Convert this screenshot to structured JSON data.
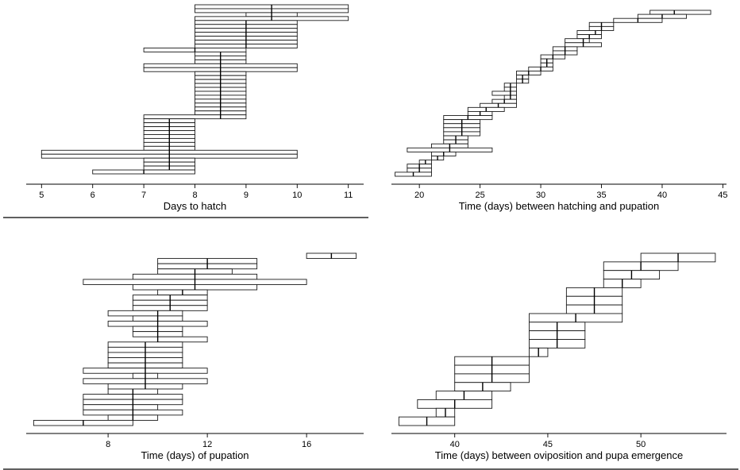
{
  "chart_data": [
    {
      "type": "bar",
      "xlabel": "Days to hatch",
      "xlim": [
        4.7,
        11.3
      ],
      "xticks": [
        5,
        6,
        7,
        8,
        9,
        10,
        11
      ],
      "intervals": [
        {
          "lo": 8,
          "hi": 11,
          "med": 9.5
        },
        {
          "lo": 8,
          "hi": 11,
          "med": 9.5
        },
        {
          "lo": 9,
          "hi": 10,
          "med": 9.5
        },
        {
          "lo": 8,
          "hi": 11,
          "med": 9.5
        },
        {
          "lo": 8,
          "hi": 10,
          "med": 9
        },
        {
          "lo": 8,
          "hi": 10,
          "med": 9
        },
        {
          "lo": 8,
          "hi": 10,
          "med": 9
        },
        {
          "lo": 8,
          "hi": 10,
          "med": 9
        },
        {
          "lo": 8,
          "hi": 10,
          "med": 9
        },
        {
          "lo": 8,
          "hi": 10,
          "med": 9
        },
        {
          "lo": 8,
          "hi": 10,
          "med": 9
        },
        {
          "lo": 7,
          "hi": 9,
          "med": 8
        },
        {
          "lo": 8,
          "hi": 9,
          "med": 8.5
        },
        {
          "lo": 8,
          "hi": 9,
          "med": 8.5
        },
        {
          "lo": 8,
          "hi": 9,
          "med": 8.5
        },
        {
          "lo": 7,
          "hi": 10,
          "med": 8.5
        },
        {
          "lo": 7,
          "hi": 10,
          "med": 8.5
        },
        {
          "lo": 8,
          "hi": 9,
          "med": 8.5
        },
        {
          "lo": 8,
          "hi": 9,
          "med": 8.5
        },
        {
          "lo": 8,
          "hi": 9,
          "med": 8.5
        },
        {
          "lo": 8,
          "hi": 9,
          "med": 8.5
        },
        {
          "lo": 8,
          "hi": 9,
          "med": 8.5
        },
        {
          "lo": 8,
          "hi": 9,
          "med": 8.5
        },
        {
          "lo": 8,
          "hi": 9,
          "med": 8.5
        },
        {
          "lo": 8,
          "hi": 9,
          "med": 8.5
        },
        {
          "lo": 8,
          "hi": 9,
          "med": 8.5
        },
        {
          "lo": 8,
          "hi": 9,
          "med": 8.5
        },
        {
          "lo": 8,
          "hi": 9,
          "med": 8.5
        },
        {
          "lo": 7,
          "hi": 9,
          "med": 8.5
        },
        {
          "lo": 7,
          "hi": 8,
          "med": 7.5
        },
        {
          "lo": 7,
          "hi": 8,
          "med": 7.5
        },
        {
          "lo": 7,
          "hi": 8,
          "med": 7.5
        },
        {
          "lo": 7,
          "hi": 8,
          "med": 7.5
        },
        {
          "lo": 7,
          "hi": 8,
          "med": 7.5
        },
        {
          "lo": 7,
          "hi": 8,
          "med": 7.5
        },
        {
          "lo": 7,
          "hi": 8,
          "med": 7.5
        },
        {
          "lo": 7,
          "hi": 8,
          "med": 7.5
        },
        {
          "lo": 5,
          "hi": 10,
          "med": 7.5
        },
        {
          "lo": 5,
          "hi": 10,
          "med": 7.5
        },
        {
          "lo": 7,
          "hi": 8,
          "med": 7.5
        },
        {
          "lo": 7,
          "hi": 8,
          "med": 7.5
        },
        {
          "lo": 7,
          "hi": 8,
          "med": 7.5
        },
        {
          "lo": 6,
          "hi": 8,
          "med": 7
        }
      ]
    },
    {
      "type": "bar",
      "xlabel": "Time (days) between hatching and pupation",
      "xlim": [
        17.7,
        45.3
      ],
      "xticks": [
        20,
        25,
        30,
        35,
        40,
        45
      ],
      "intervals": [
        {
          "lo": 39,
          "hi": 44,
          "med": 41
        },
        {
          "lo": 38,
          "hi": 42,
          "med": 40
        },
        {
          "lo": 36,
          "hi": 40,
          "med": 38
        },
        {
          "lo": 34,
          "hi": 36,
          "med": 35
        },
        {
          "lo": 34,
          "hi": 36,
          "med": 35
        },
        {
          "lo": 33,
          "hi": 35,
          "med": 34.5
        },
        {
          "lo": 33,
          "hi": 35,
          "med": 34
        },
        {
          "lo": 32,
          "hi": 34,
          "med": 33.5
        },
        {
          "lo": 32,
          "hi": 35,
          "med": 33.5
        },
        {
          "lo": 31,
          "hi": 33,
          "med": 32
        },
        {
          "lo": 31,
          "hi": 33,
          "med": 32
        },
        {
          "lo": 30,
          "hi": 32,
          "med": 31
        },
        {
          "lo": 30,
          "hi": 31,
          "med": 30.5
        },
        {
          "lo": 30,
          "hi": 31,
          "med": 30.5
        },
        {
          "lo": 29,
          "hi": 31,
          "med": 30
        },
        {
          "lo": 28,
          "hi": 30,
          "med": 29
        },
        {
          "lo": 28,
          "hi": 29,
          "med": 28.5
        },
        {
          "lo": 28,
          "hi": 29,
          "med": 28.5
        },
        {
          "lo": 27,
          "hi": 28,
          "med": 27.5
        },
        {
          "lo": 27,
          "hi": 28,
          "med": 27.5
        },
        {
          "lo": 26,
          "hi": 28,
          "med": 27.5
        },
        {
          "lo": 27,
          "hi": 28,
          "med": 27.5
        },
        {
          "lo": 26,
          "hi": 28,
          "med": 27
        },
        {
          "lo": 25,
          "hi": 28,
          "med": 26.5
        },
        {
          "lo": 24,
          "hi": 27,
          "med": 25.5
        },
        {
          "lo": 24,
          "hi": 26,
          "med": 25
        },
        {
          "lo": 22,
          "hi": 26,
          "med": 24
        },
        {
          "lo": 22,
          "hi": 25,
          "med": 23.5
        },
        {
          "lo": 22,
          "hi": 25,
          "med": 23.5
        },
        {
          "lo": 22,
          "hi": 25,
          "med": 23.5
        },
        {
          "lo": 22,
          "hi": 25,
          "med": 23.5
        },
        {
          "lo": 22,
          "hi": 24,
          "med": 23
        },
        {
          "lo": 22,
          "hi": 24,
          "med": 23
        },
        {
          "lo": 21,
          "hi": 24,
          "med": 22.5
        },
        {
          "lo": 19,
          "hi": 26,
          "med": 22.5
        },
        {
          "lo": 21,
          "hi": 23,
          "med": 22
        },
        {
          "lo": 21,
          "hi": 22,
          "med": 21.5
        },
        {
          "lo": 20,
          "hi": 21,
          "med": 20.5
        },
        {
          "lo": 19,
          "hi": 21,
          "med": 20
        },
        {
          "lo": 19,
          "hi": 21,
          "med": 20
        },
        {
          "lo": 18,
          "hi": 21,
          "med": 19.5
        }
      ]
    },
    {
      "type": "bar",
      "xlabel": "Time (days) of pupation",
      "xlim": [
        4.7,
        18.3
      ],
      "xticks": [
        8,
        12,
        16
      ],
      "intervals": [
        {
          "lo": 16,
          "hi": 18,
          "med": 17
        },
        {
          "lo": 10,
          "hi": 14,
          "med": 12
        },
        {
          "lo": 10,
          "hi": 14,
          "med": 12
        },
        {
          "lo": 10,
          "hi": 13,
          "med": 11.5
        },
        {
          "lo": 9,
          "hi": 14,
          "med": 11.5
        },
        {
          "lo": 7,
          "hi": 16,
          "med": 11.5
        },
        {
          "lo": 9,
          "hi": 14,
          "med": 11.5
        },
        {
          "lo": 10,
          "hi": 12,
          "med": 11
        },
        {
          "lo": 9,
          "hi": 12,
          "med": 10.5
        },
        {
          "lo": 9,
          "hi": 12,
          "med": 10.5
        },
        {
          "lo": 9,
          "hi": 12,
          "med": 10.5
        },
        {
          "lo": 8,
          "hi": 11,
          "med": 10
        },
        {
          "lo": 9,
          "hi": 11,
          "med": 10
        },
        {
          "lo": 8,
          "hi": 12,
          "med": 10
        },
        {
          "lo": 9,
          "hi": 11,
          "med": 10
        },
        {
          "lo": 9,
          "hi": 11,
          "med": 10
        },
        {
          "lo": 10,
          "hi": 12,
          "med": 10
        },
        {
          "lo": 8,
          "hi": 11,
          "med": 9.5
        },
        {
          "lo": 8,
          "hi": 11,
          "med": 9.5
        },
        {
          "lo": 8,
          "hi": 11,
          "med": 9.5
        },
        {
          "lo": 8,
          "hi": 11,
          "med": 9.5
        },
        {
          "lo": 8,
          "hi": 11,
          "med": 9.5
        },
        {
          "lo": 7,
          "hi": 12,
          "med": 9.5
        },
        {
          "lo": 9,
          "hi": 10,
          "med": 9.5
        },
        {
          "lo": 7,
          "hi": 12,
          "med": 9.5
        },
        {
          "lo": 8,
          "hi": 11,
          "med": 9.5
        },
        {
          "lo": 8,
          "hi": 10,
          "med": 9
        },
        {
          "lo": 7,
          "hi": 11,
          "med": 9
        },
        {
          "lo": 7,
          "hi": 11,
          "med": 9
        },
        {
          "lo": 7,
          "hi": 10,
          "med": 9
        },
        {
          "lo": 7,
          "hi": 11,
          "med": 9
        },
        {
          "lo": 8,
          "hi": 10,
          "med": 9
        },
        {
          "lo": 5,
          "hi": 9,
          "med": 7
        }
      ]
    },
    {
      "type": "bar",
      "xlabel": "Time (days) between oviposition and pupa emergence",
      "xlim": [
        36.6,
        54.6
      ],
      "xticks": [
        40,
        45,
        50
      ],
      "intervals": [
        {
          "lo": 50,
          "hi": 54,
          "med": 52
        },
        {
          "lo": 48,
          "hi": 52,
          "med": 50
        },
        {
          "lo": 48,
          "hi": 51,
          "med": 49.5
        },
        {
          "lo": 48,
          "hi": 50,
          "med": 49
        },
        {
          "lo": 46,
          "hi": 49,
          "med": 47.5
        },
        {
          "lo": 46,
          "hi": 49,
          "med": 47.5
        },
        {
          "lo": 46,
          "hi": 49,
          "med": 47.5
        },
        {
          "lo": 44,
          "hi": 49,
          "med": 46.5
        },
        {
          "lo": 44,
          "hi": 47,
          "med": 45.5
        },
        {
          "lo": 44,
          "hi": 47,
          "med": 45.5
        },
        {
          "lo": 44,
          "hi": 47,
          "med": 45.5
        },
        {
          "lo": 44,
          "hi": 45,
          "med": 44.5
        },
        {
          "lo": 40,
          "hi": 44,
          "med": 42
        },
        {
          "lo": 40,
          "hi": 44,
          "med": 42
        },
        {
          "lo": 40,
          "hi": 44,
          "med": 42
        },
        {
          "lo": 40,
          "hi": 43,
          "med": 41.5
        },
        {
          "lo": 39,
          "hi": 42,
          "med": 40.5
        },
        {
          "lo": 38,
          "hi": 42,
          "med": 40
        },
        {
          "lo": 39,
          "hi": 40,
          "med": 39.5
        },
        {
          "lo": 37,
          "hi": 40,
          "med": 38.5
        }
      ]
    }
  ]
}
